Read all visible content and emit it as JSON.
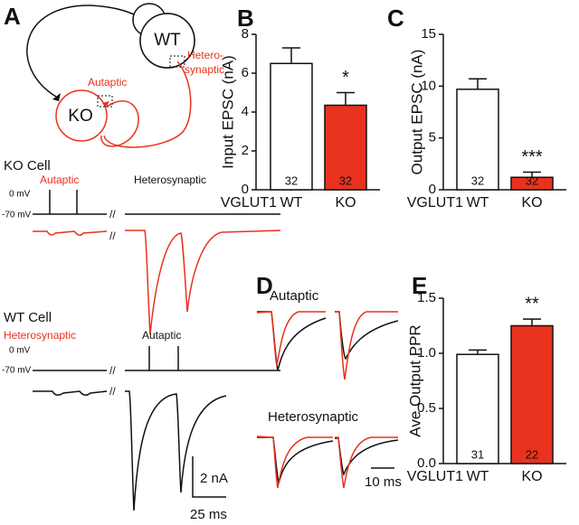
{
  "panel_a": {
    "label": "A",
    "wt": "WT",
    "ko": "KO",
    "autaptic": "Autaptic",
    "hetero_1": "Hetero-",
    "hetero_2": "synaptic",
    "ko_cell": {
      "title": "KO Cell",
      "left": "Autaptic",
      "right": "Heterosynaptic",
      "zero": "0 mV",
      "rest": "-70 mV",
      "break": "//"
    },
    "wt_cell": {
      "title": "WT Cell",
      "left": "Heterosynaptic",
      "right": "Autaptic",
      "zero": "0 mV",
      "rest": "-70 mV",
      "break": "//"
    },
    "scale_y": "2 nA",
    "scale_x": "25 ms"
  },
  "panel_d": {
    "label": "D",
    "top": "Autaptic",
    "bottom": "Heterosynaptic",
    "scale_x": "10 ms"
  },
  "chart_data": [
    {
      "type": "bar",
      "panel_label": "B",
      "ylabel": "Input EPSC (nA)",
      "group_label": "VGLUT1",
      "categories": [
        "WT",
        "KO"
      ],
      "values": [
        6.5,
        4.35
      ],
      "errors": [
        0.8,
        0.65
      ],
      "n": [
        32,
        32
      ],
      "colors": [
        "#ffffff",
        "#e8321e"
      ],
      "significance": "*",
      "ylim": [
        0,
        8
      ],
      "yticks": [
        0,
        2,
        4,
        6,
        8
      ]
    },
    {
      "type": "bar",
      "panel_label": "C",
      "ylabel": "Output EPSC (nA)",
      "group_label": "VGLUT1",
      "categories": [
        "WT",
        "KO"
      ],
      "values": [
        9.7,
        1.2
      ],
      "errors": [
        1.0,
        0.5
      ],
      "n": [
        32,
        32
      ],
      "colors": [
        "#ffffff",
        "#e8321e"
      ],
      "significance": "***",
      "ylim": [
        0,
        15
      ],
      "yticks": [
        0,
        5,
        10,
        15
      ]
    },
    {
      "type": "bar",
      "panel_label": "E",
      "ylabel": "Ave Output PPR",
      "group_label": "VGLUT1",
      "categories": [
        "WT",
        "KO"
      ],
      "values": [
        0.99,
        1.25
      ],
      "errors": [
        0.04,
        0.06
      ],
      "n": [
        31,
        22
      ],
      "colors": [
        "#ffffff",
        "#e8321e"
      ],
      "significance": "**",
      "ylim": [
        0,
        1.5
      ],
      "yticks": [
        {
          "value": 0,
          "label": "0.0"
        },
        0.5,
        {
          "value": 1,
          "label": "1.0"
        },
        1.5
      ]
    }
  ]
}
